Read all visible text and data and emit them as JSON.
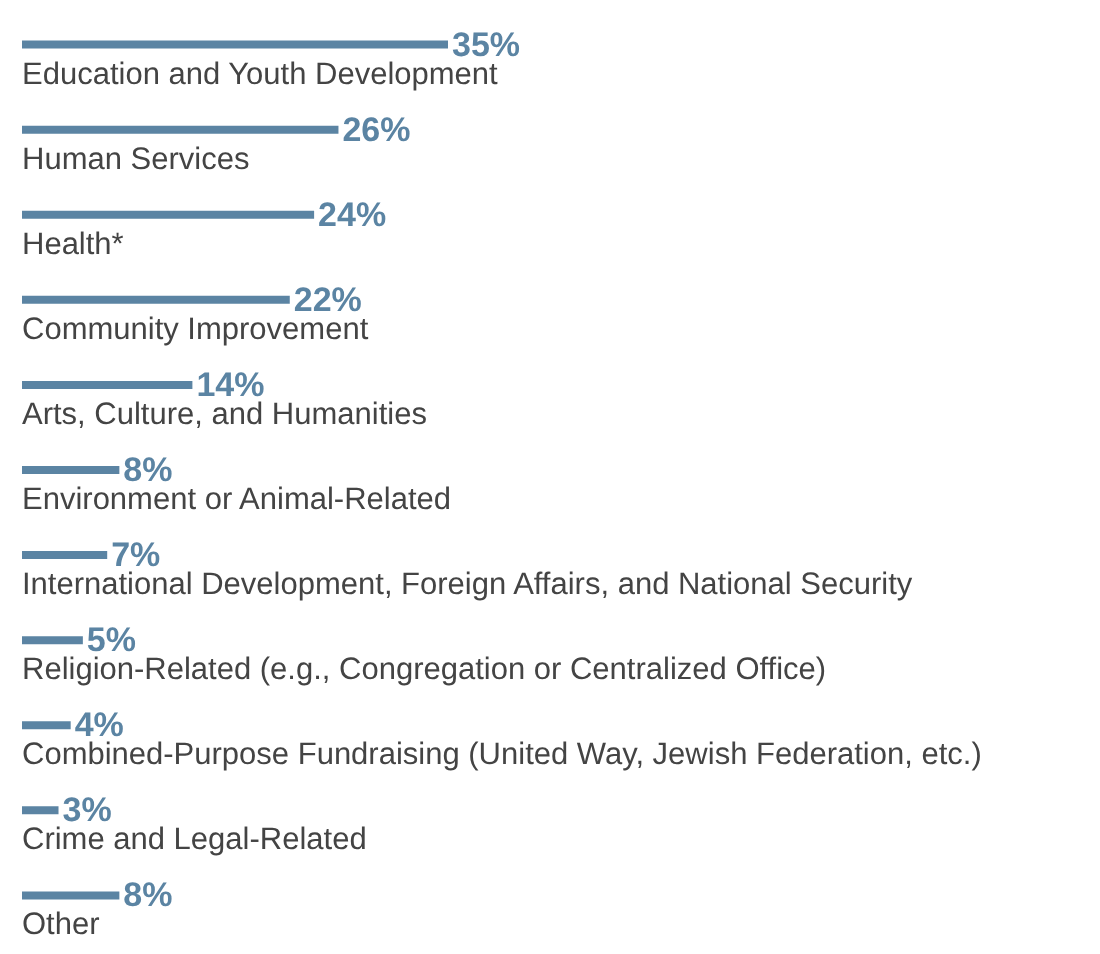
{
  "chart_data": {
    "type": "bar",
    "orientation": "horizontal",
    "data_labels": true,
    "categories": [
      "Education and Youth Development",
      "Human Services",
      "Health*",
      "Community Improvement",
      "Arts, Culture, and Humanities",
      "Environment or Animal-Related",
      "International Development, Foreign Affairs, and National Security",
      "Religion-Related (e.g., Congregation or Centralized Office)",
      "Combined-Purpose Fundraising (United Way, Jewish Federation, etc.)",
      "Crime and Legal-Related",
      "Other"
    ],
    "values": [
      35,
      26,
      24,
      22,
      14,
      8,
      7,
      5,
      4,
      3,
      8
    ],
    "value_labels": [
      "35%",
      "26%",
      "24%",
      "22%",
      "14%",
      "8%",
      "7%",
      "5%",
      "4%",
      "3%",
      "8%"
    ],
    "color": "#5b84a3"
  }
}
